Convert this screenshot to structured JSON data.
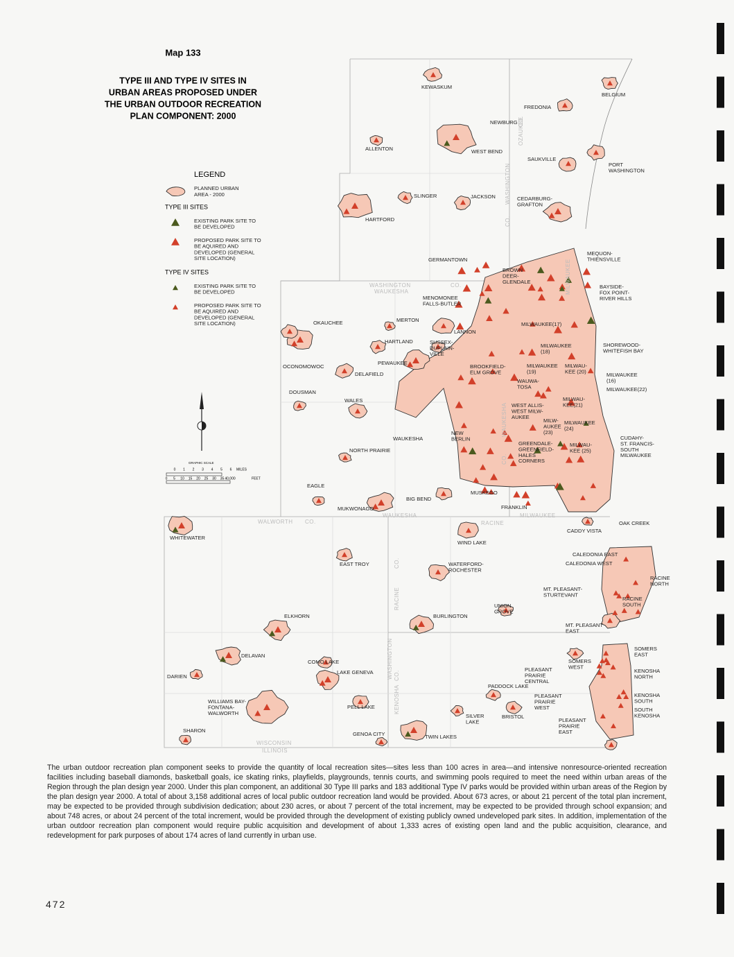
{
  "header": {
    "map_number": "Map 133",
    "title": [
      "TYPE III AND TYPE IV SITES IN",
      "URBAN AREAS PROPOSED UNDER",
      "THE URBAN OUTDOOR RECREATION",
      "PLAN COMPONENT: 2000"
    ]
  },
  "legend": {
    "title": "LEGEND",
    "urban_area": [
      "PLANNED URBAN",
      "AREA - 2000"
    ],
    "type3": {
      "heading": "TYPE III SITES",
      "existing": [
        "EXISTING PARK SITE TO",
        "BE DEVELOPED"
      ],
      "proposed": [
        "PROPOSED PARK SITE TO",
        "BE AQUIRED AND",
        "DEVELOPED (GENERAL",
        "SITE LOCATION)"
      ]
    },
    "type4": {
      "heading": "TYPE IV SITES",
      "existing": [
        "EXISTING PARK SITE TO",
        "BE DEVELOPED"
      ],
      "proposed": [
        "PROPOSED PARK SITE TO",
        "BE AQUIRED AND",
        "DEVELOPED (GENERAL",
        "SITE LOCATION)"
      ]
    }
  },
  "scale": {
    "title": "GRAPHIC SCALE",
    "miles_ticks": [
      "0",
      "1",
      "2",
      "3",
      "4",
      "5",
      "6"
    ],
    "miles_unit": "MILES",
    "feet_ticks": [
      "0",
      "5",
      "10",
      "15",
      "20",
      "25",
      "30",
      "35",
      "40,000"
    ],
    "feet_unit": "FEET"
  },
  "counties": [
    "WASHINGTON",
    "WAUKESHA",
    "MILWAUKEE",
    "WALWORTH",
    "RACINE",
    "KENOSHA",
    "OZAUKEE",
    "CO.",
    "WISCONSIN",
    "ILLINOIS"
  ],
  "places": [
    [
      "KEWASKUM"
    ],
    [
      "BELGIUM"
    ],
    [
      "FREDONIA"
    ],
    [
      "NEWBURG"
    ],
    [
      "ALLENTON"
    ],
    [
      "WEST BEND"
    ],
    [
      "SAUKVILLE"
    ],
    [
      "PORT",
      "WASHINGTON"
    ],
    [
      "SLINGER"
    ],
    [
      "JACKSON"
    ],
    [
      "CEDARBURG-",
      "GRAFTON"
    ],
    [
      "HARTFORD"
    ],
    [
      "MEQUON-",
      "THIENSVILLE"
    ],
    [
      "GERMANTOWN"
    ],
    [
      "BROWN",
      "DEER-",
      "GLENDALE"
    ],
    [
      "BAYSIDE-",
      "FOX POINT-",
      "RIVER HILLS"
    ],
    [
      "MENOMONEE",
      "FALLS-BUTLER"
    ],
    [
      "MILWAUKEE(17)"
    ],
    [
      "OKAUCHEE"
    ],
    [
      "MERTON"
    ],
    [
      "LANNON"
    ],
    [
      "HARTLAND"
    ],
    [
      "SUSSEX-",
      "DUPLAIN-",
      "VILLE"
    ],
    [
      "SHOREWOOD-",
      "WHITEFISH BAY"
    ],
    [
      "MILWAUKEE",
      "(18)"
    ],
    [
      "PEWAUKEE"
    ],
    [
      "OCONOMOWOC"
    ],
    [
      "BROOKFIELD-",
      "ELM GROVE"
    ],
    [
      "MILWAUKEE",
      "(19)"
    ],
    [
      "MILWAU-",
      "KEE (20)"
    ],
    [
      "DELAFIELD"
    ],
    [
      "MILWAUKEE",
      "(16)"
    ],
    [
      "WAUWA-",
      "TOSA"
    ],
    [
      "MILWAUKEE(22)"
    ],
    [
      "DOUSMAN"
    ],
    [
      "WALES"
    ],
    [
      "MILWAU-",
      "KEE(21)"
    ],
    [
      "WEST ALLIS-",
      "WEST MILW-",
      "AUKEE"
    ],
    [
      "MILW-",
      "AUKEE",
      "(23)"
    ],
    [
      "MILWAUKEE",
      "(24)"
    ],
    [
      "NEW",
      "BERLIN"
    ],
    [
      "WAUKESHA"
    ],
    [
      "CUDAHY-",
      "ST. FRANCIS-",
      "SOUTH",
      "MILWAUKEE"
    ],
    [
      "GREENDALE-",
      "GREENFIELD-",
      "HALES",
      "CORNERS"
    ],
    [
      "MILWAU-",
      "KEE (25)"
    ],
    [
      "NORTH PRAIRIE"
    ],
    [
      "EAGLE"
    ],
    [
      "MUSKEGO"
    ],
    [
      "BIG BEND"
    ],
    [
      "MUKWONAGO"
    ],
    [
      "FRANKLIN"
    ],
    [
      "OAK CREEK"
    ],
    [
      "CADDY VISTA"
    ],
    [
      "WHITEWATER"
    ],
    [
      "WIND LAKE"
    ],
    [
      "CALEDONIA EAST"
    ],
    [
      "CALEDONIA WEST"
    ],
    [
      "EAST TROY"
    ],
    [
      "WATERFORD-",
      "ROCHESTER"
    ],
    [
      "RACINE",
      "NORTH"
    ],
    [
      "MT. PLEASANT-",
      "STURTEVANT"
    ],
    [
      "RACINE",
      "SOUTH"
    ],
    [
      "UNION",
      "GROVE"
    ],
    [
      "BURLINGTON"
    ],
    [
      "ELKHORN"
    ],
    [
      "MT. PLEASANT",
      "EAST"
    ],
    [
      "SOMERS",
      "EAST"
    ],
    [
      "DELAVAN"
    ],
    [
      "COMO LAKE"
    ],
    [
      "SOMERS",
      "WEST"
    ],
    [
      "PLEASANT",
      "PRAIRIE",
      "CENTRAL"
    ],
    [
      "KENOSHA",
      "NORTH"
    ],
    [
      "DARIEN"
    ],
    [
      "LAKE GENEVA"
    ],
    [
      "PADDOCK LAKE"
    ],
    [
      "PLEASANT",
      "PRAIRIE",
      "WEST"
    ],
    [
      "KENOSHA",
      "SOUTH"
    ],
    [
      "WILLIAMS BAY-",
      "FONTANA-",
      "WALWORTH"
    ],
    [
      "PELL LAKE"
    ],
    [
      "SOUTH",
      "KENOSHA"
    ],
    [
      "SILVER",
      "LAKE"
    ],
    [
      "BRISTOL"
    ],
    [
      "PLEASANT",
      "PRAIRIE",
      "EAST"
    ],
    [
      "SHARON"
    ],
    [
      "GENOA CITY"
    ],
    [
      "TWIN LAKES"
    ]
  ],
  "body_text": "The urban outdoor recreation plan component seeks to provide the quantity of local recreation sites—sites less than 100 acres in area—and intensive nonresource-oriented recreation facilities including baseball diamonds, basketball goals, ice skating rinks, playfields, playgrounds, tennis courts, and swimming pools required to meet the need within urban areas of the Region through the plan design year 2000. Under this plan component, an additional 30 Type III parks and 183 additional Type IV parks would be provided within urban areas of the Region by the plan design year 2000. A total of about 3,158 additional acres of local public outdoor recreation land would be provided. About 673 acres, or about 21 percent of the total plan increment, may be expected to be provided through subdivision dedication; about 230 acres, or about 7 percent of the total increment, may be expected to be provided through school expansion; and about 748 acres, or about 24 percent of the total increment, would be provided through the development of existing publicly owned undeveloped park sites. In addition, implementation of the urban outdoor recreation plan component would require public acquisition and development of about 1,333 acres of existing open land and the public acquisition, clearance, and redevelopment for park purposes of about 174 acres of land currently in urban use.",
  "page_number": "472"
}
